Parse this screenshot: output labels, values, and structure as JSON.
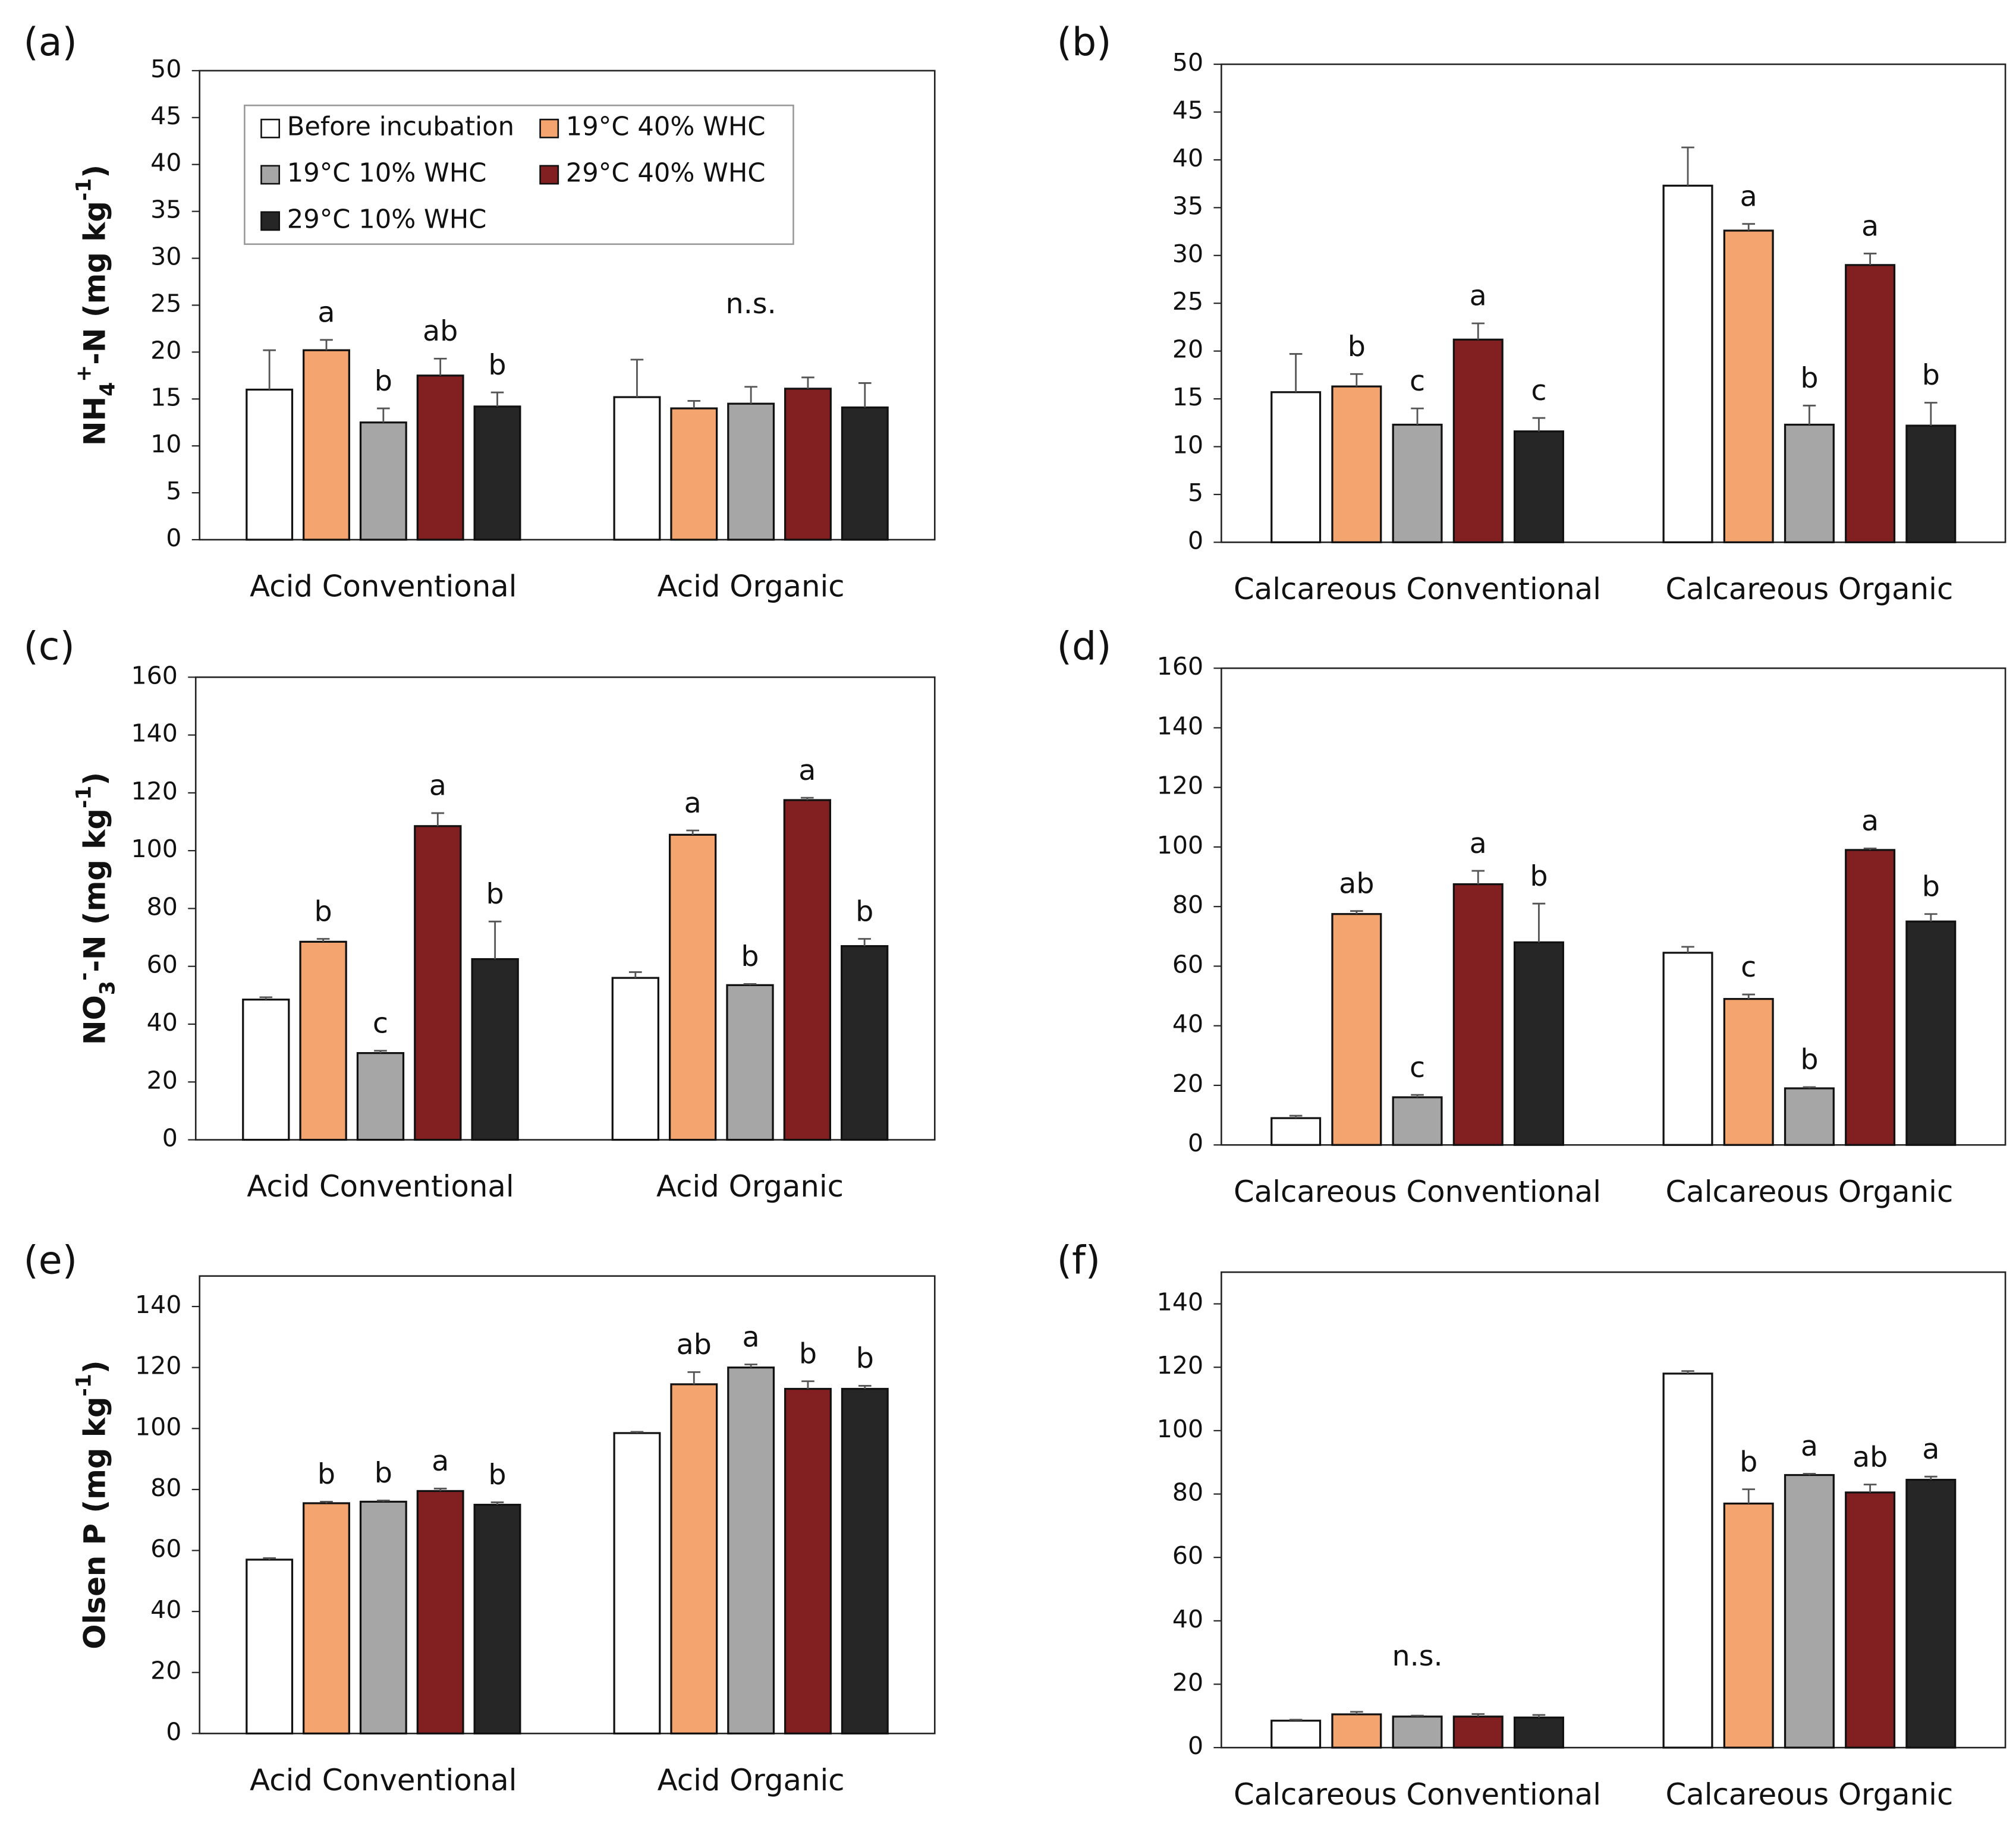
{
  "chart_data": [
    {
      "type": "bar",
      "panel_label": "(a)",
      "ylabel": {
        "parts": [
          "NH",
          "4",
          "+",
          "-N (mg kg",
          "-1",
          ")"
        ],
        "styles": [
          "normal",
          "sub",
          "sup",
          "normal",
          "sup",
          "normal"
        ]
      },
      "categories": [
        "Acid Conventional",
        "Acid Organic"
      ],
      "ylim": [
        0,
        50
      ],
      "yticks": [
        0,
        5,
        10,
        15,
        20,
        25,
        30,
        35,
        40,
        45,
        50
      ],
      "legend": "upper left",
      "series": [
        {
          "name": "Before incubation",
          "color": "#ffffff",
          "values": [
            16,
            15.2
          ],
          "errors": [
            4.2,
            4
          ],
          "letters": [
            null,
            null
          ]
        },
        {
          "name": "19°C 40% WHC",
          "color": "#f4a46f",
          "values": [
            20.2,
            14
          ],
          "errors": [
            1.1,
            0.8
          ],
          "letters": [
            "a",
            null
          ]
        },
        {
          "name": "19°C 10% WHC",
          "color": "#a6a6a6",
          "values": [
            12.5,
            14.5
          ],
          "errors": [
            1.5,
            1.8
          ],
          "letters": [
            "b",
            null
          ]
        },
        {
          "name": "29°C 40% WHC",
          "color": "#821f21",
          "values": [
            17.5,
            16.1
          ],
          "errors": [
            1.8,
            1.2
          ],
          "letters": [
            "ab",
            null
          ]
        },
        {
          "name": "29°C 10% WHC",
          "color": "#262626",
          "values": [
            14.2,
            14.1
          ],
          "errors": [
            1.5,
            2.6
          ],
          "letters": [
            "b",
            null
          ]
        }
      ],
      "group_notes": [
        null,
        "n.s."
      ]
    },
    {
      "type": "bar",
      "panel_label": "(b)",
      "categories": [
        "Calcareous Conventional",
        "Calcareous Organic"
      ],
      "ylim": [
        0,
        50
      ],
      "yticks": [
        0,
        5,
        10,
        15,
        20,
        25,
        30,
        35,
        40,
        45,
        50
      ],
      "series": [
        {
          "color": "#ffffff",
          "values": [
            15.7,
            37.3
          ],
          "errors": [
            4,
            4
          ],
          "letters": [
            null,
            null
          ]
        },
        {
          "color": "#f4a46f",
          "values": [
            16.3,
            32.6
          ],
          "errors": [
            1.3,
            0.7
          ],
          "letters": [
            "b",
            "a"
          ]
        },
        {
          "color": "#a6a6a6",
          "values": [
            12.3,
            12.3
          ],
          "errors": [
            1.7,
            2
          ],
          "letters": [
            "c",
            "b"
          ]
        },
        {
          "color": "#821f21",
          "values": [
            21.2,
            29
          ],
          "errors": [
            1.7,
            1.2
          ],
          "letters": [
            "a",
            "a"
          ]
        },
        {
          "color": "#262626",
          "values": [
            11.6,
            12.2
          ],
          "errors": [
            1.4,
            2.4
          ],
          "letters": [
            "c",
            "b"
          ]
        }
      ]
    },
    {
      "type": "bar",
      "panel_label": "(c)",
      "ylabel": {
        "parts": [
          "NO",
          "3",
          "-",
          "-N (mg kg",
          "-1",
          ")"
        ],
        "styles": [
          "normal",
          "sub",
          "sup",
          "normal",
          "sup",
          "normal"
        ]
      },
      "categories": [
        "Acid Conventional",
        "Acid Organic"
      ],
      "ylim": [
        0,
        160
      ],
      "yticks": [
        0,
        20,
        40,
        60,
        80,
        100,
        120,
        140,
        160
      ],
      "series": [
        {
          "color": "#ffffff",
          "values": [
            48.5,
            56
          ],
          "errors": [
            0.8,
            2
          ],
          "letters": [
            null,
            null
          ]
        },
        {
          "color": "#f4a46f",
          "values": [
            68.5,
            105.5
          ],
          "errors": [
            1,
            1.5
          ],
          "letters": [
            "b",
            "a"
          ]
        },
        {
          "color": "#a6a6a6",
          "values": [
            30,
            53.5
          ],
          "errors": [
            0.8,
            0.4
          ],
          "letters": [
            "c",
            "b"
          ]
        },
        {
          "color": "#821f21",
          "values": [
            108.5,
            117.5
          ],
          "errors": [
            4.5,
            0.8
          ],
          "letters": [
            "a",
            "a"
          ]
        },
        {
          "color": "#262626",
          "values": [
            62.5,
            67
          ],
          "errors": [
            13,
            2.5
          ],
          "letters": [
            "b",
            "b"
          ]
        }
      ]
    },
    {
      "type": "bar",
      "panel_label": "(d)",
      "categories": [
        "Calcareous Conventional",
        "Calcareous Organic"
      ],
      "ylim": [
        0,
        160
      ],
      "yticks": [
        0,
        20,
        40,
        60,
        80,
        100,
        120,
        140,
        160
      ],
      "series": [
        {
          "color": "#ffffff",
          "values": [
            9,
            64.5
          ],
          "errors": [
            0.8,
            2
          ],
          "letters": [
            null,
            null
          ]
        },
        {
          "color": "#f4a46f",
          "values": [
            77.5,
            49
          ],
          "errors": [
            1,
            1.5
          ],
          "letters": [
            "ab",
            "c"
          ]
        },
        {
          "color": "#a6a6a6",
          "values": [
            16,
            19
          ],
          "errors": [
            0.8,
            0.4
          ],
          "letters": [
            "c",
            "b"
          ]
        },
        {
          "color": "#821f21",
          "values": [
            87.5,
            99
          ],
          "errors": [
            4.5,
            0.5
          ],
          "letters": [
            "a",
            "a"
          ]
        },
        {
          "color": "#262626",
          "values": [
            68,
            75
          ],
          "errors": [
            13,
            2.5
          ],
          "letters": [
            "b",
            "b"
          ]
        }
      ]
    },
    {
      "type": "bar",
      "panel_label": "(e)",
      "ylabel": {
        "parts": [
          "Olsen P (mg kg",
          "-1",
          ")"
        ],
        "styles": [
          "normal",
          "sup",
          "normal"
        ]
      },
      "categories": [
        "Acid Conventional",
        "Acid Organic"
      ],
      "ylim": [
        0,
        150
      ],
      "yticks": [
        0,
        20,
        40,
        60,
        80,
        100,
        120,
        140
      ],
      "series": [
        {
          "color": "#ffffff",
          "values": [
            57,
            98.5
          ],
          "errors": [
            0.5,
            0.4
          ],
          "letters": [
            null,
            null
          ]
        },
        {
          "color": "#f4a46f",
          "values": [
            75.5,
            114.5
          ],
          "errors": [
            0.5,
            4
          ],
          "letters": [
            "b",
            "ab"
          ]
        },
        {
          "color": "#a6a6a6",
          "values": [
            76,
            120
          ],
          "errors": [
            0.4,
            1
          ],
          "letters": [
            "b",
            "a"
          ]
        },
        {
          "color": "#821f21",
          "values": [
            79.5,
            113
          ],
          "errors": [
            0.8,
            2.5
          ],
          "letters": [
            "a",
            "b"
          ]
        },
        {
          "color": "#262626",
          "values": [
            75,
            113
          ],
          "errors": [
            0.8,
            1
          ],
          "letters": [
            "b",
            "b"
          ]
        }
      ]
    },
    {
      "type": "bar",
      "panel_label": "(f)",
      "categories": [
        "Calcareous Conventional",
        "Calcareous Organic"
      ],
      "ylim": [
        0,
        150
      ],
      "yticks": [
        0,
        20,
        40,
        60,
        80,
        100,
        120,
        140
      ],
      "series": [
        {
          "color": "#ffffff",
          "values": [
            8.5,
            118
          ],
          "errors": [
            0.3,
            0.8
          ],
          "letters": [
            null,
            null
          ]
        },
        {
          "color": "#f4a46f",
          "values": [
            10.5,
            77
          ],
          "errors": [
            0.8,
            4.5
          ],
          "letters": [
            null,
            "b"
          ]
        },
        {
          "color": "#a6a6a6",
          "values": [
            9.8,
            86
          ],
          "errors": [
            0.3,
            0.4
          ],
          "letters": [
            null,
            "a"
          ]
        },
        {
          "color": "#821f21",
          "values": [
            9.8,
            80.5
          ],
          "errors": [
            0.8,
            2.5
          ],
          "letters": [
            null,
            "ab"
          ]
        },
        {
          "color": "#262626",
          "values": [
            9.5,
            84.5
          ],
          "errors": [
            0.8,
            1
          ],
          "letters": [
            null,
            "a"
          ]
        }
      ],
      "group_notes": [
        "n.s.",
        null
      ]
    }
  ]
}
